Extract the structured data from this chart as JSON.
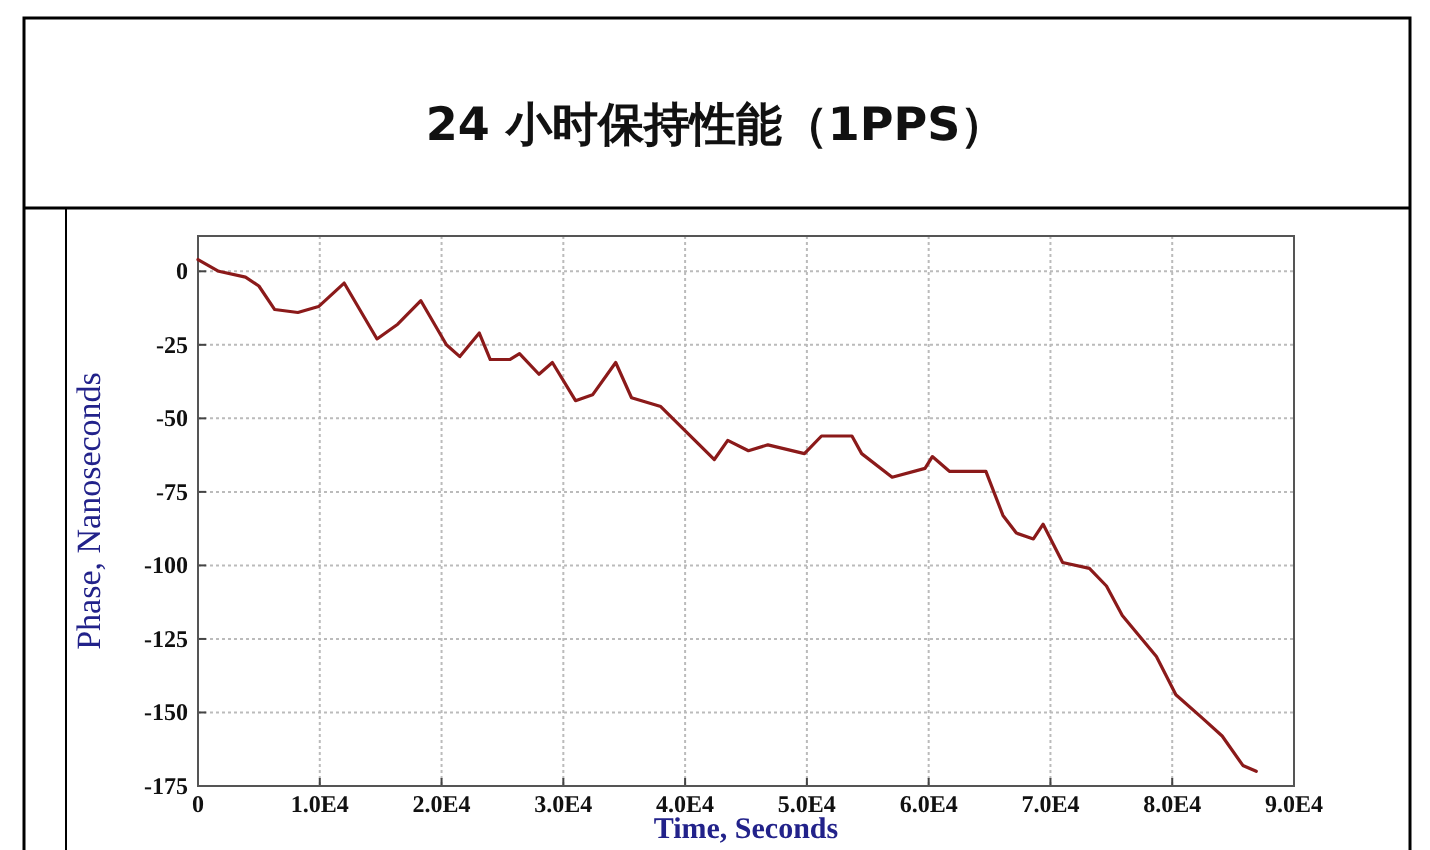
{
  "chart_data": {
    "type": "line",
    "title": "24 小时保持性能（1PPS）",
    "xlabel": "Time, Seconds",
    "ylabel": "Phase, Nanoseconds",
    "x": [
      0,
      1700,
      3900,
      5000,
      6300,
      8200,
      9900,
      12000,
      14700,
      16400,
      18300,
      20400,
      21500,
      23100,
      24000,
      25600,
      26400,
      28000,
      29100,
      31000,
      32400,
      34300,
      35600,
      38000,
      39700,
      42400,
      43500,
      45200,
      46800,
      49800,
      51200,
      53700,
      54500,
      57000,
      59700,
      60300,
      61700,
      63300,
      64700,
      66100,
      67200,
      68600,
      69400,
      71000,
      73200,
      74600,
      75900,
      78700,
      80300,
      82500,
      84100,
      85800,
      86900
    ],
    "series": [
      {
        "color": "#8b1a1a",
        "values": [
          4,
          0,
          -2,
          -5,
          -13,
          -14,
          -12,
          -4,
          -23,
          -18,
          -10,
          -25,
          -29,
          -21,
          -30,
          -30,
          -28,
          -35,
          -31,
          -44,
          -42,
          -31,
          -43,
          -46,
          -53,
          -64,
          -57.5,
          -61,
          -59,
          -62,
          -56,
          -56,
          -62,
          -70,
          -67,
          -63,
          -68,
          -68,
          -68,
          -83,
          -89,
          -91,
          -86,
          -99,
          -101,
          -107,
          -117,
          -131,
          -144,
          -152,
          -158,
          -168,
          -170
        ]
      }
    ],
    "xlim": [
      0,
      90000
    ],
    "ylim": [
      -175,
      12
    ],
    "xticks": [
      0,
      {
        "value": 10000,
        "label": "1.0E4"
      },
      {
        "value": 20000,
        "label": "2.0E4"
      },
      {
        "value": 30000,
        "label": "3.0E4"
      },
      {
        "value": 40000,
        "label": "4.0E4"
      },
      {
        "value": 50000,
        "label": "5.0E4"
      },
      {
        "value": 60000,
        "label": "6.0E4"
      },
      {
        "value": 70000,
        "label": "7.0E4"
      },
      {
        "value": 80000,
        "label": "8.0E4"
      },
      {
        "value": 90000,
        "label": "9.0E4"
      }
    ],
    "yticks": [
      0,
      -25,
      -50,
      -75,
      -100,
      -125,
      -150,
      -175
    ],
    "grid": true,
    "line_style": "solid",
    "marker": "none"
  }
}
